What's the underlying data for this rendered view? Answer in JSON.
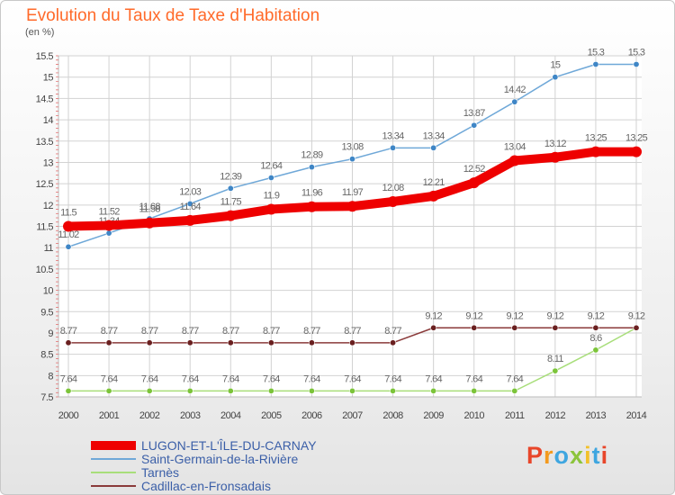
{
  "title": "Evolution du Taux de Taxe d'Habitation",
  "unit": "(en %)",
  "brand": "Proxiti",
  "colors": {
    "title": "#ff6a2a",
    "grid": "#d2d2d2",
    "axis_text": "#444444",
    "brand": [
      "#e8462a",
      "#f39a1e",
      "#3fa6e0",
      "#8cc43c",
      "#f2c12a",
      "#3fa6e0",
      "#e8462a"
    ]
  },
  "chart_data": {
    "type": "line",
    "title": "Evolution du Taux de Taxe d'Habitation",
    "ylabel": "(en %)",
    "xlabel": "",
    "x": [
      "2000",
      "2001",
      "2002",
      "2003",
      "2004",
      "2005",
      "2006",
      "2007",
      "2008",
      "2009",
      "2010",
      "2011",
      "2012",
      "2013",
      "2014"
    ],
    "ylim": [
      7.5,
      15.5
    ],
    "yticks": [
      "7.5",
      "8",
      "8.5",
      "9",
      "9.5",
      "10",
      "10.5",
      "11",
      "11.5",
      "12",
      "12.5",
      "13",
      "13.5",
      "14",
      "14.5",
      "15",
      "15.5"
    ],
    "grid": true,
    "legend_position": "bottom-left",
    "series": [
      {
        "name": "Saint-Germain-de-la-Rivière",
        "color": "#6fa8d8",
        "marker": "#3f86c6",
        "values": [
          11.02,
          11.34,
          11.68,
          12.03,
          12.39,
          12.64,
          12.89,
          13.08,
          13.34,
          13.34,
          13.87,
          14.42,
          15,
          15.3,
          15.3
        ],
        "labels": [
          "11.02",
          "11.34",
          "11.68",
          "12.03",
          "12.39",
          "12.64",
          "12.89",
          "13.08",
          "13.34",
          "13.34",
          "13.87",
          "14.42",
          "15",
          "15.3",
          "15.3"
        ]
      },
      {
        "name": "Tarnès",
        "color": "#a8de7a",
        "marker": "#7cc43a",
        "values": [
          7.64,
          7.64,
          7.64,
          7.64,
          7.64,
          7.64,
          7.64,
          7.64,
          7.64,
          7.64,
          7.64,
          7.64,
          8.11,
          8.6,
          9.12
        ],
        "labels": [
          "7.64",
          "7.64",
          "7.64",
          "7.64",
          "7.64",
          "7.64",
          "7.64",
          "7.64",
          "7.64",
          "7.64",
          "7.64",
          "7.64",
          "8.11",
          "8.6",
          ""
        ]
      },
      {
        "name": "Cadillac-en-Fronsadais",
        "color": "#8a3a3a",
        "marker": "#6a2020",
        "values": [
          8.77,
          8.77,
          8.77,
          8.77,
          8.77,
          8.77,
          8.77,
          8.77,
          8.77,
          9.12,
          9.12,
          9.12,
          9.12,
          9.12,
          9.12
        ],
        "labels": [
          "8.77",
          "8.77",
          "8.77",
          "8.77",
          "8.77",
          "8.77",
          "8.77",
          "8.77",
          "8.77",
          "9.12",
          "9.12",
          "9.12",
          "9.12",
          "9.12",
          "9.12"
        ]
      },
      {
        "name": "LUGON-ET-L'ÎLE-DU-CARNAY",
        "color": "#ee0000",
        "marker": "#ee0000",
        "width": 10,
        "values": [
          11.5,
          11.52,
          11.58,
          11.64,
          11.75,
          11.9,
          11.96,
          11.97,
          12.08,
          12.21,
          12.52,
          13.04,
          13.12,
          13.25,
          13.25
        ],
        "labels": [
          "11.5",
          "11.52",
          "11.58",
          "11.64",
          "11.75",
          "11.9",
          "11.96",
          "11.97",
          "12.08",
          "12.21",
          "12.52",
          "13.04",
          "13.12",
          "13.25",
          "13.25"
        ]
      }
    ]
  },
  "legend": [
    {
      "label": "LUGON-ET-L'ÎLE-DU-CARNAY",
      "color": "#ee0000",
      "thickness": 10
    },
    {
      "label": "Saint-Germain-de-la-Rivière",
      "color": "#6fa8d8",
      "thickness": 2
    },
    {
      "label": "Tarnès",
      "color": "#a8de7a",
      "thickness": 2
    },
    {
      "label": "Cadillac-en-Fronsadais",
      "color": "#8a3a3a",
      "thickness": 2
    }
  ]
}
